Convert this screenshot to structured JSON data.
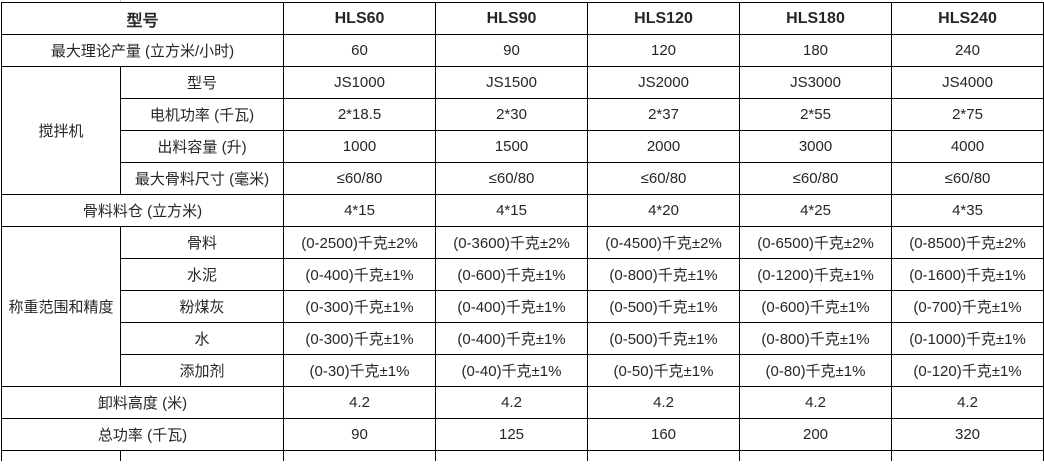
{
  "accent_color": "#ED7D31",
  "grid_color": "#000000",
  "text_color": "#262626",
  "header": {
    "label": "型号",
    "models": [
      "HLS60",
      "HLS90",
      "HLS120",
      "HLS180",
      "HLS240"
    ]
  },
  "groups": {
    "mixer": "搅拌机",
    "weighing": "称重范围和精度"
  },
  "rows": [
    {
      "label": "最大理论产量 (立方米/小时)",
      "values": [
        "60",
        "90",
        "120",
        "180",
        "240"
      ]
    },
    {
      "label": "型号",
      "values": [
        "JS1000",
        "JS1500",
        "JS2000",
        "JS3000",
        "JS4000"
      ]
    },
    {
      "label": "电机功率 (千瓦)",
      "values": [
        "2*18.5",
        "2*30",
        "2*37",
        "2*55",
        "2*75"
      ]
    },
    {
      "label": "出料容量 (升)",
      "values": [
        "1000",
        "1500",
        "2000",
        "3000",
        "4000"
      ]
    },
    {
      "label": "最大骨料尺寸 (毫米)",
      "values": [
        "≤60/80",
        "≤60/80",
        "≤60/80",
        "≤60/80",
        "≤60/80"
      ]
    },
    {
      "label": "骨料料仓 (立方米)",
      "values": [
        "4*15",
        "4*15",
        "4*20",
        "4*25",
        "4*35"
      ]
    },
    {
      "label": "骨料",
      "values": [
        "(0-2500)千克±2%",
        "(0-3600)千克±2%",
        "(0-4500)千克±2%",
        "(0-6500)千克±2%",
        "(0-8500)千克±2%"
      ]
    },
    {
      "label": "水泥",
      "values": [
        "(0-400)千克±1%",
        "(0-600)千克±1%",
        "(0-800)千克±1%",
        "(0-1200)千克±1%",
        "(0-1600)千克±1%"
      ]
    },
    {
      "label": "粉煤灰",
      "values": [
        "(0-300)千克±1%",
        "(0-400)千克±1%",
        "(0-500)千克±1%",
        "(0-600)千克±1%",
        "(0-700)千克±1%"
      ]
    },
    {
      "label": "水",
      "values": [
        "(0-300)千克±1%",
        "(0-400)千克±1%",
        "(0-500)千克±1%",
        "(0-800)千克±1%",
        "(0-1000)千克±1%"
      ]
    },
    {
      "label": "添加剂",
      "values": [
        "(0-30)千克±1%",
        "(0-40)千克±1%",
        "(0-50)千克±1%",
        "(0-80)千克±1%",
        "(0-120)千克±1%"
      ]
    },
    {
      "label": "卸料高度 (米)",
      "values": [
        "4.2",
        "4.2",
        "4.2",
        "4.2",
        "4.2"
      ]
    },
    {
      "label": "总功率 (千瓦)",
      "values": [
        "90",
        "125",
        "160",
        "200",
        "320"
      ]
    }
  ]
}
